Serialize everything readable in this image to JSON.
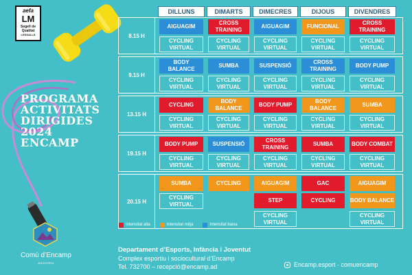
{
  "badge": {
    "line1": "aefa",
    "line2": "LM",
    "line3": "Segell de Qualitat",
    "line4": "LESSALLS"
  },
  "title_lines": [
    "PROGRAMA",
    "ACTIVITATS",
    "DIRIGIDES",
    "2024",
    "ENCAMP"
  ],
  "days": [
    "DILLUNS",
    "DIMARTS",
    "DIMECRES",
    "DIJOUS",
    "DIVENDRES"
  ],
  "times": [
    "8.15 H",
    "9.15 H",
    "13.15 H",
    "19.15 H",
    "20.15 H"
  ],
  "slot1": [
    [
      {
        "name": "AIGUAGIM",
        "level": "low"
      },
      {
        "name": "CROSS TRAINING",
        "level": "high"
      },
      {
        "name": "AIGUAGIM",
        "level": "low"
      },
      {
        "name": "FUNCIONAL",
        "level": "mid"
      },
      {
        "name": "CROSS TRAINING",
        "level": "high"
      }
    ],
    [
      {
        "name": "BODY BALANCE",
        "level": "low"
      },
      {
        "name": "SUMBA",
        "level": "low"
      },
      {
        "name": "SUSPENSIÓ",
        "level": "low"
      },
      {
        "name": "CROSS TRAINING",
        "level": "low"
      },
      {
        "name": "BODY PUMP",
        "level": "low"
      }
    ],
    [
      {
        "name": "CYCLING",
        "level": "high"
      },
      {
        "name": "BODY BALANCE",
        "level": "mid"
      },
      {
        "name": "BODY PUMP",
        "level": "high"
      },
      {
        "name": "BODY BALANCE",
        "level": "mid"
      },
      {
        "name": "SUMBA",
        "level": "mid"
      }
    ],
    [
      {
        "name": "BODY PUMP",
        "level": "high"
      },
      {
        "name": "SUSPENSIÓ",
        "level": "low"
      },
      {
        "name": "CROSS TRAINING",
        "level": "high"
      },
      {
        "name": "SUMBA",
        "level": "high"
      },
      {
        "name": "BODY COMBAT",
        "level": "high"
      }
    ],
    [
      {
        "name": "SUMBA",
        "level": "mid"
      },
      {
        "name": "CYCLING",
        "level": "mid"
      },
      {
        "name": "AIGUAGIM",
        "level": "mid"
      },
      {
        "name": "GAC",
        "level": "high"
      },
      {
        "name": "AIGUAGIM",
        "level": "mid"
      }
    ]
  ],
  "slot2_last": [
    "CYCLING VIRTUAL",
    "",
    "STEP",
    "CYCLING",
    "BODY BALANCE"
  ],
  "slot2_last_levels": [
    "",
    "",
    "high",
    "high",
    "mid"
  ],
  "cycling_virtual": "CYCLING VIRTUAL",
  "legend": [
    {
      "label": "Intensitat alta",
      "color": "#e21b2c"
    },
    {
      "label": "Intensitat mitja",
      "color": "#f3961c"
    },
    {
      "label": "Intensitat baixa",
      "color": "#2b8ed6"
    }
  ],
  "footer": {
    "department": "Departament d’Esports, Infància i Joventut",
    "complex": "Complex esportiu i sociocultural d’Encamp",
    "contact": "Tel. 732700 – recepció@encamp.ad",
    "social": "Encamp.esport · comuencamp"
  },
  "org": {
    "name": "Comú d’Encamp",
    "country": "ANDORRA"
  },
  "colors": {
    "background": "#45bfc7",
    "high": "#e21b2c",
    "mid": "#f3961c",
    "low": "#2b8ed6"
  }
}
